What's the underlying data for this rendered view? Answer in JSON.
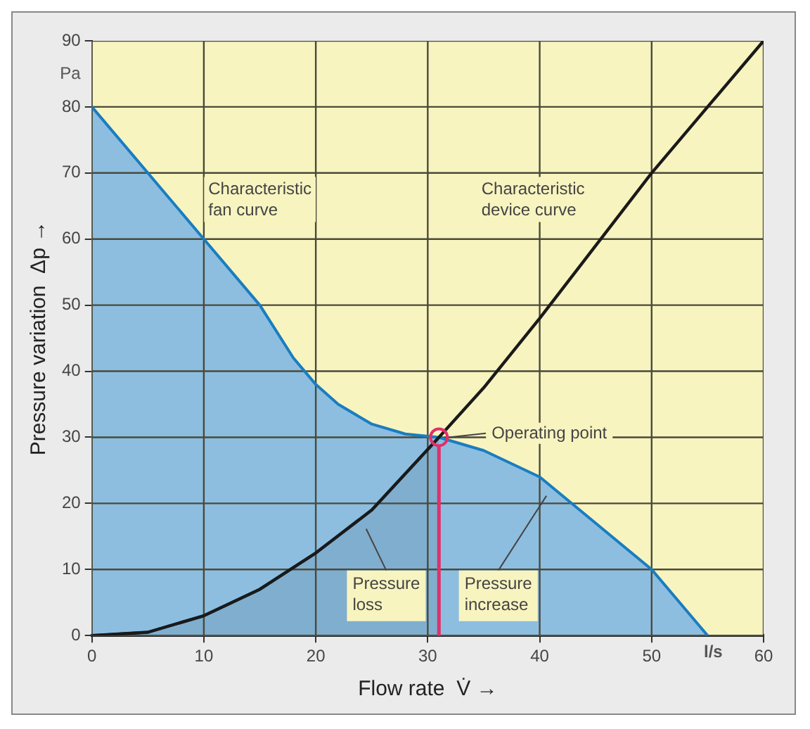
{
  "chart_data": {
    "type": "line",
    "xlabel": "Flow rate  V̇ →",
    "ylabel": "Pressure variation  Δp →",
    "xlim": [
      0,
      60
    ],
    "xticks": [
      0,
      10,
      20,
      30,
      40,
      50,
      60
    ],
    "ylim": [
      0,
      90
    ],
    "yticks": [
      0,
      10,
      20,
      30,
      40,
      50,
      60,
      70,
      80,
      90
    ],
    "grid": true,
    "legend": false,
    "series": [
      {
        "name": "Characteristic fan curve",
        "type": "area",
        "color": "#1a7dc0",
        "x": [
          0,
          5,
          10,
          15,
          18,
          20,
          22,
          25,
          28,
          31,
          35,
          40,
          45,
          50,
          55
        ],
        "values": [
          80,
          70,
          60,
          50,
          42,
          38,
          35,
          32,
          30.5,
          30,
          28,
          24,
          17,
          10,
          0
        ]
      },
      {
        "type": "area",
        "color": "#005c9c",
        "x": [
          0,
          5,
          10,
          15,
          20,
          25,
          31
        ],
        "values": [
          0,
          0.5,
          3,
          7,
          12.5,
          19,
          30
        ]
      },
      {
        "name": "Characteristic device curve",
        "type": "line",
        "color": "#1a1a1a",
        "x": [
          0,
          5,
          10,
          15,
          20,
          25,
          31,
          35,
          40,
          50,
          60
        ],
        "values": [
          0,
          0.5,
          3,
          7,
          12.5,
          19,
          30,
          37.5,
          48,
          70,
          90
        ]
      },
      {
        "type": "scatter",
        "color": "#e0306a",
        "marker": "circle",
        "x": [
          31
        ],
        "values": [
          30
        ]
      }
    ],
    "ref_lines": [
      {
        "axis": "x",
        "value": 31,
        "color": "#e0306a"
      }
    ],
    "annotations": [
      {
        "text": "Operating point",
        "x": 31,
        "y": 30
      },
      {
        "text": "Pressure loss",
        "x": 24.5,
        "y": 17
      },
      {
        "text": "Pressure increase",
        "x": 40.6,
        "y": 22
      },
      "Pa",
      "l/s"
    ]
  }
}
